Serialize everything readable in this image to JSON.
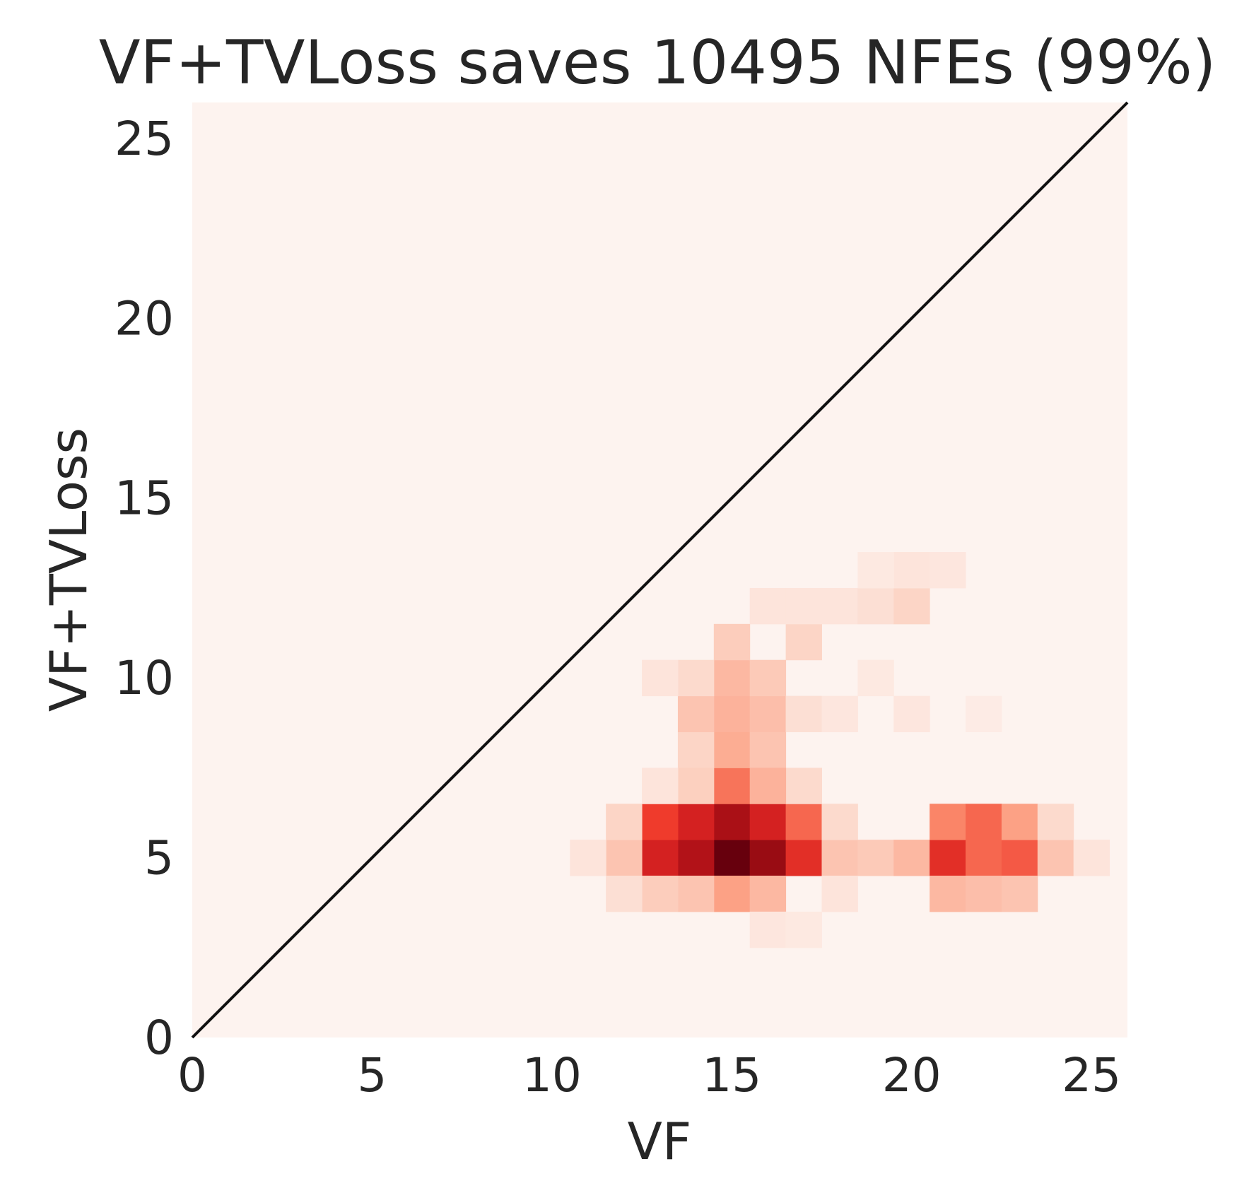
{
  "chart_data": {
    "type": "heatmap",
    "title": "VF+TVLoss saves 10495 NFEs (99%)",
    "xlabel": "VF",
    "ylabel": "VF+TVLoss",
    "xlim": [
      0,
      26
    ],
    "ylim": [
      0,
      26
    ],
    "xticks": [
      "0",
      "5",
      "10",
      "15",
      "20",
      "25"
    ],
    "yticks": [
      "0",
      "5",
      "10",
      "15",
      "20",
      "25"
    ],
    "grid": false,
    "colormap": "Reds",
    "background_color": "#fdf3ef",
    "reference_line": {
      "from": [
        0,
        0
      ],
      "to": [
        26,
        26
      ],
      "color": "#111111"
    },
    "cell_size": 1,
    "cells": [
      [
        15,
        5,
        1.0
      ],
      [
        15,
        6,
        0.88
      ],
      [
        16,
        5,
        0.92
      ],
      [
        16,
        6,
        0.7
      ],
      [
        14,
        5,
        0.85
      ],
      [
        14,
        6,
        0.7
      ],
      [
        13,
        5,
        0.7
      ],
      [
        13,
        6,
        0.55
      ],
      [
        17,
        5,
        0.62
      ],
      [
        17,
        6,
        0.45
      ],
      [
        15,
        7,
        0.42
      ],
      [
        15,
        4,
        0.3
      ],
      [
        16,
        4,
        0.22
      ],
      [
        14,
        4,
        0.18
      ],
      [
        13,
        4,
        0.15
      ],
      [
        12,
        5,
        0.18
      ],
      [
        12,
        6,
        0.12
      ],
      [
        12,
        4,
        0.08
      ],
      [
        11,
        5,
        0.06
      ],
      [
        18,
        5,
        0.18
      ],
      [
        18,
        6,
        0.1
      ],
      [
        19,
        5,
        0.16
      ],
      [
        20,
        5,
        0.22
      ],
      [
        21,
        5,
        0.62
      ],
      [
        21,
        6,
        0.38
      ],
      [
        21,
        4,
        0.22
      ],
      [
        22,
        5,
        0.45
      ],
      [
        22,
        6,
        0.45
      ],
      [
        22,
        4,
        0.2
      ],
      [
        23,
        5,
        0.48
      ],
      [
        23,
        6,
        0.3
      ],
      [
        23,
        4,
        0.18
      ],
      [
        24,
        5,
        0.18
      ],
      [
        24,
        6,
        0.1
      ],
      [
        25,
        5,
        0.06
      ],
      [
        15,
        8,
        0.26
      ],
      [
        16,
        8,
        0.18
      ],
      [
        14,
        8,
        0.12
      ],
      [
        15,
        9,
        0.24
      ],
      [
        16,
        9,
        0.2
      ],
      [
        14,
        9,
        0.18
      ],
      [
        15,
        10,
        0.22
      ],
      [
        16,
        10,
        0.16
      ],
      [
        14,
        10,
        0.1
      ],
      [
        15,
        11,
        0.15
      ],
      [
        13,
        10,
        0.06
      ],
      [
        17,
        11,
        0.12
      ],
      [
        17,
        9,
        0.08
      ],
      [
        16,
        12,
        0.06
      ],
      [
        17,
        12,
        0.06
      ],
      [
        18,
        12,
        0.06
      ],
      [
        19,
        12,
        0.08
      ],
      [
        20,
        12,
        0.12
      ],
      [
        20,
        13,
        0.06
      ],
      [
        21,
        13,
        0.05
      ],
      [
        19,
        13,
        0.04
      ],
      [
        18,
        9,
        0.05
      ],
      [
        20,
        9,
        0.05
      ],
      [
        19,
        10,
        0.04
      ],
      [
        22,
        9,
        0.03
      ],
      [
        17,
        7,
        0.1
      ],
      [
        16,
        7,
        0.24
      ],
      [
        14,
        7,
        0.14
      ],
      [
        13,
        7,
        0.06
      ],
      [
        18,
        4,
        0.06
      ],
      [
        16,
        3,
        0.05
      ],
      [
        17,
        3,
        0.04
      ]
    ]
  }
}
